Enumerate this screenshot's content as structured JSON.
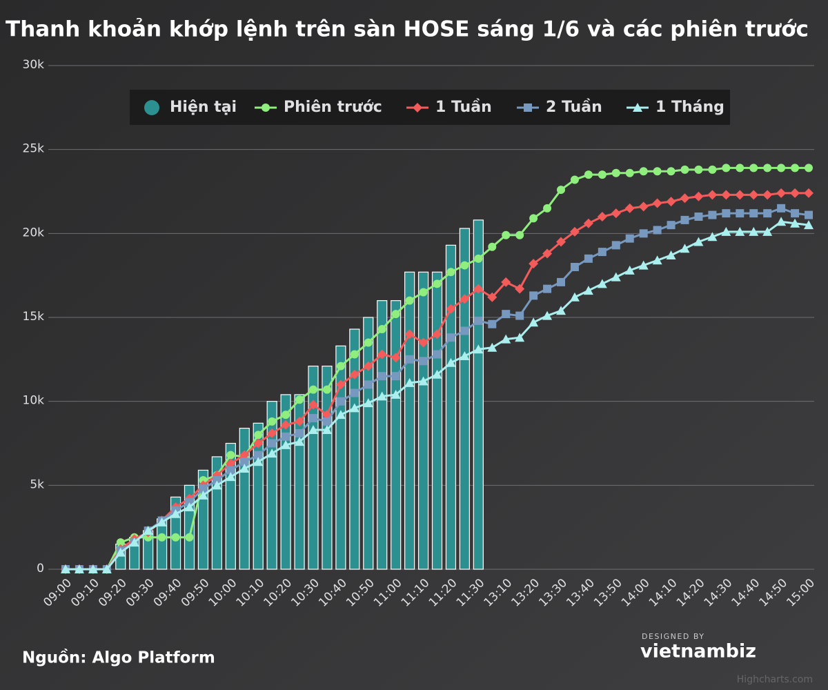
{
  "chart_data": {
    "type": "bar-line",
    "title": "Thanh khoản khớp lệnh trên sàn HOSE sáng 1/6 và các phiên trước",
    "source": "Nguồn: Algo Platform",
    "credits": "Highcharts.com",
    "logo": {
      "top": "DESIGNED BY",
      "name": "vietnambiz"
    },
    "legend_position": "top",
    "grid": true,
    "categories": [
      "09:00",
      null,
      "09:10",
      null,
      "09:20",
      null,
      "09:30",
      null,
      "09:40",
      null,
      "09:50",
      null,
      "10:00",
      null,
      "10:10",
      null,
      "10:20",
      null,
      "10:30",
      null,
      "10:40",
      null,
      "10:50",
      null,
      "11:00",
      null,
      "11:10",
      null,
      "11:20",
      null,
      "11:30",
      null,
      "13:10",
      null,
      "13:20",
      null,
      "13:30",
      null,
      "13:40",
      null,
      "13:50",
      null,
      "14:00",
      null,
      "14:10",
      null,
      "14:20",
      null,
      "14:30",
      null,
      "14:40",
      null,
      "14:50",
      null,
      "15:00"
    ],
    "ylim": [
      0,
      30000
    ],
    "yticks": [
      {
        "value": 0,
        "label": "0"
      },
      {
        "value": 5000,
        "label": "5k"
      },
      {
        "value": 10000,
        "label": "10k"
      },
      {
        "value": 15000,
        "label": "15k"
      },
      {
        "value": 20000,
        "label": "20k"
      },
      {
        "value": 25000,
        "label": "25k"
      },
      {
        "value": 30000,
        "label": "30k"
      }
    ],
    "series": [
      {
        "name": "Hiện tại",
        "type": "bar",
        "marker": "circle",
        "color": "#2b908f",
        "values": [
          0,
          0,
          0,
          0,
          1500,
          1900,
          2300,
          3000,
          4300,
          5000,
          5900,
          6700,
          7500,
          8400,
          8700,
          10000,
          10400,
          10400,
          12100,
          12100,
          13300,
          14300,
          15000,
          16000,
          16000,
          17700,
          17700,
          17700,
          19300,
          20300,
          20800,
          null,
          null,
          null,
          null,
          null,
          null,
          null,
          null,
          null,
          null,
          null,
          null,
          null,
          null,
          null,
          null,
          null,
          null,
          null,
          null,
          null,
          null,
          null,
          null
        ]
      },
      {
        "name": "Phiên trước",
        "type": "line",
        "marker": "circle",
        "color": "#90ee7e",
        "values": [
          0,
          0,
          0,
          0,
          1600,
          1900,
          1900,
          1900,
          1900,
          1900,
          5300,
          5600,
          6800,
          6700,
          8000,
          8800,
          9200,
          10100,
          10700,
          10700,
          12100,
          12800,
          13500,
          14300,
          15200,
          16000,
          16500,
          17000,
          17700,
          18100,
          18500,
          19200,
          19900,
          19900,
          20900,
          21500,
          22600,
          23200,
          23500,
          23500,
          23600,
          23600,
          23700,
          23700,
          23700,
          23800,
          23800,
          23800,
          23900,
          23900,
          23900,
          23900,
          23900,
          23900,
          23900
        ]
      },
      {
        "name": "1 Tuần",
        "type": "line",
        "marker": "diamond",
        "color": "#f45b5b",
        "values": [
          0,
          0,
          0,
          0,
          1200,
          1800,
          2200,
          2900,
          3700,
          4200,
          5000,
          5600,
          6300,
          6800,
          7500,
          8100,
          8600,
          8800,
          9800,
          9200,
          11000,
          11600,
          12100,
          12800,
          12600,
          14000,
          13500,
          14000,
          15500,
          16100,
          16700,
          16200,
          17100,
          16700,
          18200,
          18800,
          19500,
          20100,
          20600,
          21000,
          21200,
          21500,
          21600,
          21800,
          21900,
          22100,
          22200,
          22300,
          22300,
          22300,
          22300,
          22300,
          22400,
          22400,
          22400
        ]
      },
      {
        "name": "2 Tuần",
        "type": "line",
        "marker": "square",
        "color": "#7798bf",
        "values": [
          0,
          0,
          0,
          0,
          1100,
          1600,
          2300,
          2900,
          3500,
          4000,
          4800,
          5300,
          5900,
          6400,
          6800,
          7500,
          7900,
          8100,
          9000,
          8800,
          10000,
          10500,
          11000,
          11500,
          11500,
          12500,
          12400,
          12800,
          13800,
          14200,
          14800,
          14600,
          15200,
          15100,
          16300,
          16700,
          17100,
          18000,
          18500,
          18900,
          19300,
          19700,
          20000,
          20200,
          20500,
          20800,
          21000,
          21100,
          21200,
          21200,
          21200,
          21200,
          21500,
          21200,
          21100
        ]
      },
      {
        "name": "1 Tháng",
        "type": "line",
        "marker": "triangle",
        "color": "#aaeeee",
        "values": [
          0,
          0,
          0,
          0,
          1000,
          1600,
          2300,
          2800,
          3300,
          3700,
          4400,
          5000,
          5500,
          6000,
          6400,
          6900,
          7400,
          7600,
          8300,
          8300,
          9200,
          9600,
          9900,
          10300,
          10400,
          11100,
          11200,
          11600,
          12300,
          12700,
          13100,
          13200,
          13700,
          13800,
          14700,
          15100,
          15400,
          16200,
          16600,
          17000,
          17400,
          17800,
          18100,
          18400,
          18700,
          19100,
          19500,
          19800,
          20100,
          20100,
          20100,
          20100,
          20700,
          20600,
          20500
        ]
      }
    ]
  }
}
